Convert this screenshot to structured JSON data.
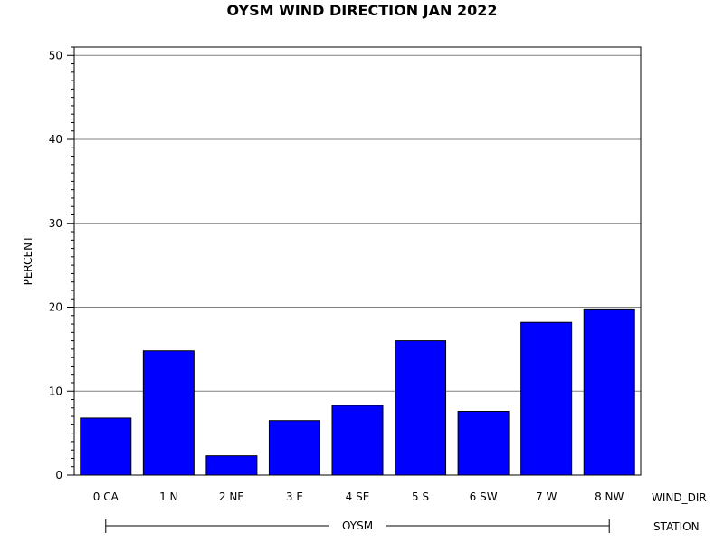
{
  "chart_data": {
    "type": "bar",
    "title": "OYSM WIND DIRECTION JAN 2022",
    "ylabel": "PERCENT",
    "xlabel": "WIND_DIR",
    "group_label": "STATION",
    "group_value": "OYSM",
    "categories": [
      "0 CA",
      "1 N",
      "2 NE",
      "3 E",
      "4 SE",
      "5 S",
      "6 SW",
      "7 W",
      "8 NW"
    ],
    "values": [
      6.8,
      14.8,
      2.3,
      6.5,
      8.3,
      16.0,
      7.6,
      18.2,
      19.8
    ],
    "ylim": [
      0,
      51
    ],
    "yticks": [
      0,
      10,
      20,
      30,
      40,
      50
    ],
    "grid": true,
    "bar_color": "#0000ff"
  }
}
